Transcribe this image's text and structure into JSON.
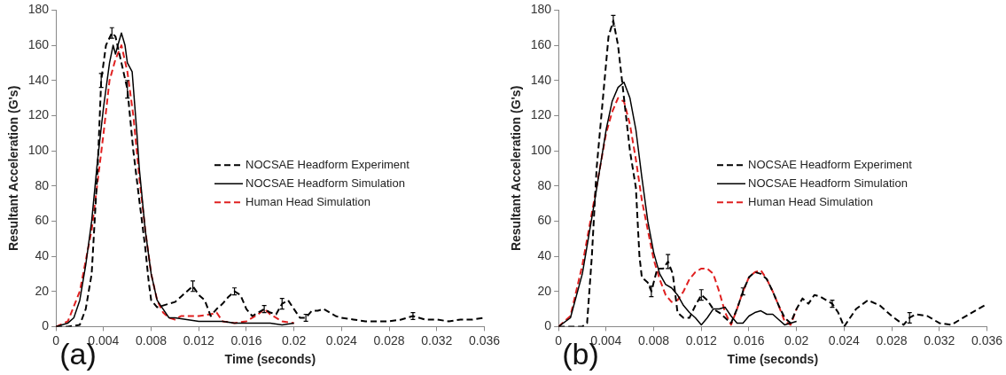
{
  "chart_data": [
    {
      "type": "line",
      "xlabel": "Time (seconds)",
      "ylabel": "Resultant Acceleration (G's)",
      "annotations": [
        "(a)"
      ],
      "xlim": [
        0,
        0.036
      ],
      "xticks": [
        0,
        0.004,
        0.008,
        0.012,
        0.016,
        0.02,
        0.024,
        0.028,
        0.032,
        0.036
      ],
      "ylim": [
        0,
        180
      ],
      "yticks": [
        0,
        20,
        40,
        60,
        80,
        100,
        120,
        140,
        160,
        180
      ],
      "legend": "right",
      "series": [
        {
          "name": "NOCSAE Headform Experiment",
          "color": "#000000",
          "line_style": "dashed",
          "x": [
            0,
            0.001,
            0.002,
            0.0025,
            0.003,
            0.0035,
            0.0038,
            0.0042,
            0.0047,
            0.005,
            0.0055,
            0.006,
            0.0065,
            0.007,
            0.0075,
            0.0078,
            0.008,
            0.0085,
            0.009,
            0.0095,
            0.01,
            0.0105,
            0.011,
            0.0115,
            0.012,
            0.0125,
            0.013,
            0.0135,
            0.014,
            0.0145,
            0.015,
            0.0155,
            0.016,
            0.0165,
            0.017,
            0.0175,
            0.018,
            0.0185,
            0.019,
            0.0195,
            0.02,
            0.0205,
            0.021,
            0.0215,
            0.022,
            0.0225,
            0.023,
            0.0235,
            0.024,
            0.025,
            0.026,
            0.027,
            0.028,
            0.029,
            0.03,
            0.031,
            0.032,
            0.033,
            0.034,
            0.035,
            0.036
          ],
          "values": [
            0,
            0,
            1,
            10,
            30,
            90,
            140,
            160,
            167,
            165,
            150,
            135,
            100,
            72,
            45,
            25,
            15,
            11,
            12,
            13,
            14,
            17,
            20,
            23,
            18,
            15,
            6,
            10,
            13,
            17,
            20,
            18,
            10,
            6,
            8,
            10,
            8,
            7,
            13,
            15,
            10,
            5,
            5,
            9,
            9,
            10,
            8,
            6,
            5,
            4,
            3,
            3,
            3,
            4,
            6,
            4,
            4,
            3,
            4,
            4,
            5
          ],
          "errors": [
            null,
            null,
            null,
            null,
            null,
            null,
            4,
            null,
            3,
            null,
            null,
            5,
            null,
            null,
            null,
            null,
            null,
            null,
            null,
            null,
            null,
            null,
            null,
            3,
            null,
            null,
            null,
            null,
            null,
            null,
            2,
            null,
            null,
            null,
            null,
            2,
            null,
            null,
            3,
            null,
            null,
            null,
            2,
            null,
            null,
            null,
            null,
            null,
            null,
            null,
            null,
            null,
            null,
            null,
            2,
            null,
            null,
            null,
            null,
            null,
            null
          ]
        },
        {
          "name": "NOCSAE Headform Simulation",
          "color": "#000000",
          "line_style": "solid",
          "x": [
            0,
            0.001,
            0.0015,
            0.002,
            0.0025,
            0.003,
            0.0035,
            0.004,
            0.0045,
            0.0048,
            0.005,
            0.0052,
            0.0055,
            0.0058,
            0.006,
            0.0064,
            0.0068,
            0.007,
            0.0075,
            0.008,
            0.0085,
            0.009,
            0.0095,
            0.01,
            0.011,
            0.012,
            0.013,
            0.014,
            0.015,
            0.016,
            0.017,
            0.018,
            0.019,
            0.02
          ],
          "values": [
            0,
            2,
            5,
            15,
            35,
            60,
            95,
            125,
            150,
            160,
            155,
            160,
            167,
            160,
            150,
            145,
            110,
            90,
            55,
            30,
            15,
            10,
            5,
            5,
            4,
            3,
            3,
            3,
            2,
            2,
            2,
            2,
            1,
            2
          ]
        },
        {
          "name": "Human Head Simulation",
          "color": "#e02020",
          "line_style": "dashed",
          "x": [
            0,
            0.001,
            0.002,
            0.003,
            0.004,
            0.0045,
            0.005,
            0.0055,
            0.006,
            0.0065,
            0.007,
            0.0075,
            0.008,
            0.0085,
            0.009,
            0.0095,
            0.01,
            0.0105,
            0.011,
            0.012,
            0.013,
            0.0135,
            0.014,
            0.015,
            0.016,
            0.017,
            0.0175,
            0.018,
            0.019,
            0.02
          ],
          "values": [
            0,
            3,
            20,
            55,
            110,
            140,
            152,
            160,
            145,
            120,
            85,
            55,
            30,
            15,
            8,
            5,
            4,
            6,
            6,
            6,
            7,
            8,
            3,
            2,
            3,
            7,
            10,
            7,
            3,
            2
          ]
        }
      ]
    },
    {
      "type": "line",
      "xlabel": "Time (seconds)",
      "ylabel": "Resultant Acceleration (G's)",
      "annotations": [
        "(b)"
      ],
      "xlim": [
        0,
        0.036
      ],
      "xticks": [
        0,
        0.004,
        0.008,
        0.012,
        0.016,
        0.02,
        0.024,
        0.028,
        0.032,
        0.036
      ],
      "ylim": [
        0,
        180
      ],
      "yticks": [
        0,
        20,
        40,
        60,
        80,
        100,
        120,
        140,
        160,
        180
      ],
      "legend": "right",
      "series": [
        {
          "name": "NOCSAE Headform Experiment",
          "color": "#000000",
          "line_style": "dashed",
          "x": [
            0,
            0.001,
            0.002,
            0.0024,
            0.0028,
            0.0032,
            0.0038,
            0.0042,
            0.0046,
            0.005,
            0.0055,
            0.006,
            0.0065,
            0.0068,
            0.007,
            0.0075,
            0.0078,
            0.0083,
            0.0088,
            0.0092,
            0.0096,
            0.01,
            0.0105,
            0.011,
            0.0115,
            0.012,
            0.0125,
            0.013,
            0.0135,
            0.014,
            0.0145,
            0.015,
            0.0155,
            0.016,
            0.0165,
            0.017,
            0.0175,
            0.018,
            0.0185,
            0.019,
            0.0195,
            0.02,
            0.0205,
            0.021,
            0.0215,
            0.022,
            0.023,
            0.0235,
            0.024,
            0.025,
            0.026,
            0.027,
            0.028,
            0.029,
            0.0295,
            0.03,
            0.031,
            0.032,
            0.033,
            0.034,
            0.035,
            0.0358
          ],
          "values": [
            0,
            0,
            0,
            2,
            40,
            90,
            135,
            165,
            174,
            160,
            130,
            100,
            79,
            40,
            28,
            25,
            20,
            33,
            33,
            37,
            30,
            8,
            5,
            5,
            12,
            18,
            15,
            10,
            8,
            5,
            2,
            10,
            20,
            28,
            31,
            30,
            27,
            20,
            12,
            5,
            2,
            10,
            16,
            13,
            18,
            17,
            13,
            8,
            0,
            10,
            15,
            12,
            6,
            1,
            5,
            7,
            6,
            2,
            1,
            5,
            9,
            12
          ],
          "errors": [
            null,
            null,
            null,
            null,
            null,
            null,
            null,
            null,
            3,
            null,
            null,
            null,
            null,
            null,
            null,
            null,
            3,
            null,
            null,
            4,
            null,
            null,
            null,
            null,
            null,
            3,
            null,
            null,
            null,
            null,
            null,
            null,
            2,
            null,
            null,
            null,
            null,
            null,
            null,
            null,
            null,
            null,
            null,
            null,
            null,
            null,
            2,
            null,
            null,
            null,
            null,
            null,
            null,
            null,
            3,
            null,
            null,
            null,
            null,
            null,
            null,
            null
          ]
        },
        {
          "name": "NOCSAE Headform Simulation",
          "color": "#000000",
          "line_style": "solid",
          "x": [
            0,
            0.001,
            0.002,
            0.003,
            0.004,
            0.0045,
            0.005,
            0.0055,
            0.006,
            0.0065,
            0.007,
            0.0075,
            0.008,
            0.0085,
            0.009,
            0.0095,
            0.01,
            0.0105,
            0.011,
            0.0115,
            0.012,
            0.0125,
            0.013,
            0.0135,
            0.014,
            0.0145,
            0.015,
            0.0155,
            0.016,
            0.0165,
            0.017,
            0.0175,
            0.018,
            0.0185,
            0.019,
            0.0195,
            0.02
          ],
          "values": [
            0,
            5,
            30,
            70,
            112,
            128,
            136,
            139,
            130,
            112,
            85,
            60,
            42,
            30,
            24,
            22,
            18,
            12,
            8,
            5,
            1,
            5,
            10,
            10,
            11,
            6,
            2,
            2,
            6,
            8,
            9,
            7,
            7,
            4,
            1,
            2,
            3
          ]
        },
        {
          "name": "Human Head Simulation",
          "color": "#e02020",
          "line_style": "dashed",
          "x": [
            0,
            0.001,
            0.002,
            0.003,
            0.004,
            0.0045,
            0.005,
            0.0055,
            0.006,
            0.0065,
            0.007,
            0.0075,
            0.008,
            0.0085,
            0.009,
            0.0095,
            0.01,
            0.0105,
            0.011,
            0.0115,
            0.012,
            0.0125,
            0.013,
            0.0135,
            0.014,
            0.0145,
            0.015,
            0.0155,
            0.016,
            0.0165,
            0.017,
            0.0175,
            0.018,
            0.0185,
            0.019,
            0.0195,
            0.02
          ],
          "values": [
            0,
            6,
            35,
            72,
            110,
            122,
            130,
            128,
            115,
            95,
            72,
            55,
            38,
            27,
            18,
            14,
            15,
            20,
            27,
            31,
            33,
            33,
            30,
            20,
            8,
            1,
            10,
            20,
            28,
            31,
            32,
            27,
            20,
            12,
            3,
            1,
            10
          ]
        }
      ]
    }
  ]
}
